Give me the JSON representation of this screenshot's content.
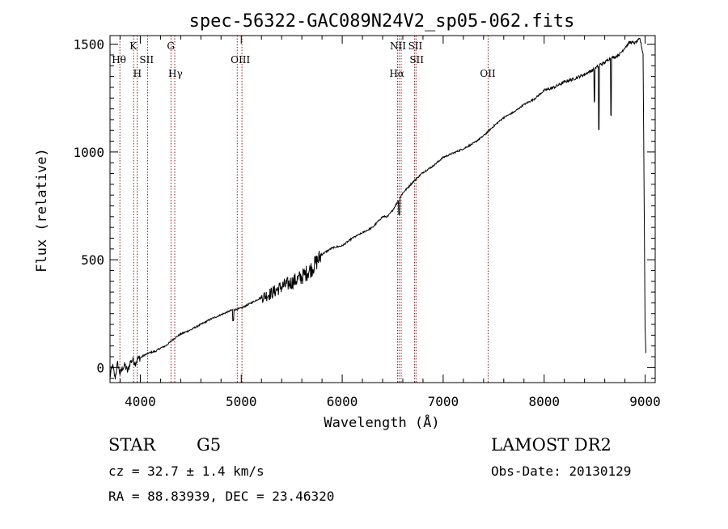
{
  "chart_data": {
    "type": "line",
    "title": "spec-56322-GAC089N24V2_sp05-062.fits",
    "xlabel": "Wavelength (Å)",
    "ylabel": "Flux (relative)",
    "xlim": [
      3700,
      9100
    ],
    "ylim": [
      -70,
      1540
    ],
    "x_ticks": [
      4000,
      5000,
      6000,
      7000,
      8000,
      9000
    ],
    "y_ticks": [
      0,
      500,
      1000,
      1500
    ],
    "x_tick_labels": [
      "4000",
      "5000",
      "6000",
      "7000",
      "8000",
      "9000"
    ],
    "y_tick_labels": [
      "0",
      "500",
      "1000",
      "1500"
    ],
    "grid": false,
    "series": [
      {
        "color": "#000000",
        "x": [
          3700,
          3725,
          3750,
          3775,
          3800,
          3825,
          3850,
          3875,
          3900,
          3925,
          3950,
          3975,
          4000,
          4050,
          4100,
          4150,
          4200,
          4250,
          4300,
          4350,
          4400,
          4450,
          4500,
          4600,
          4700,
          4800,
          4900,
          5000,
          5100,
          5200,
          5300,
          5400,
          5500,
          5600,
          5700,
          5800,
          5900,
          6000,
          6100,
          6200,
          6300,
          6400,
          6450,
          6500,
          6600,
          6700,
          6800,
          6900,
          7000,
          7100,
          7200,
          7300,
          7400,
          7500,
          7600,
          7700,
          7800,
          7900,
          8000,
          8100,
          8200,
          8300,
          8400,
          8500,
          8550,
          8600,
          8650,
          8700,
          8750,
          8800,
          8850,
          8900,
          8950,
          8980,
          9000,
          9010
        ],
        "y": [
          -40,
          10,
          -50,
          20,
          -30,
          0,
          10,
          -20,
          25,
          35,
          20,
          40,
          45,
          60,
          70,
          75,
          90,
          100,
          120,
          140,
          155,
          165,
          175,
          200,
          225,
          245,
          265,
          275,
          300,
          325,
          345,
          375,
          395,
          420,
          460,
          525,
          555,
          565,
          600,
          625,
          650,
          700,
          700,
          730,
          810,
          860,
          905,
          935,
          975,
          995,
          1015,
          1040,
          1075,
          1120,
          1160,
          1185,
          1220,
          1245,
          1285,
          1300,
          1325,
          1340,
          1360,
          1385,
          1405,
          1415,
          1435,
          1440,
          1455,
          1485,
          1510,
          1505,
          1525,
          1455,
          180,
          40
        ]
      }
    ],
    "lines": [
      {
        "x": 3798,
        "labels": [
          "Hθ"
        ]
      },
      {
        "x": 3934,
        "labels": [
          "K"
        ]
      },
      {
        "x": 3969,
        "labels": [
          "H"
        ]
      },
      {
        "x": 4072,
        "labels": [
          "SII"
        ]
      },
      {
        "x": 4304,
        "labels": [
          "G"
        ]
      },
      {
        "x": 4341,
        "labels": [
          "Hγ"
        ]
      },
      {
        "x": 4960,
        "labels": [
          ""
        ]
      },
      {
        "x": 5007,
        "labels": [
          "OIII"
        ]
      },
      {
        "x": 6548,
        "labels": [
          ""
        ]
      },
      {
        "x": 6563,
        "labels": [
          "Hα"
        ]
      },
      {
        "x": 6584,
        "labels": [
          "NII"
        ]
      },
      {
        "x": 6717,
        "labels": [
          "SII"
        ]
      },
      {
        "x": 6731,
        "labels": [
          "SII"
        ]
      },
      {
        "x": 7445,
        "labels": [
          "OII"
        ]
      }
    ]
  },
  "footer": {
    "object_type": "STAR",
    "subclass": "G5",
    "survey": "LAMOST DR2",
    "redshift": "cz = 32.7 ± 1.4 km/s",
    "obs_date": "Obs-Date: 20130129",
    "coords": "RA =  88.83939, DEC =  23.46320"
  }
}
